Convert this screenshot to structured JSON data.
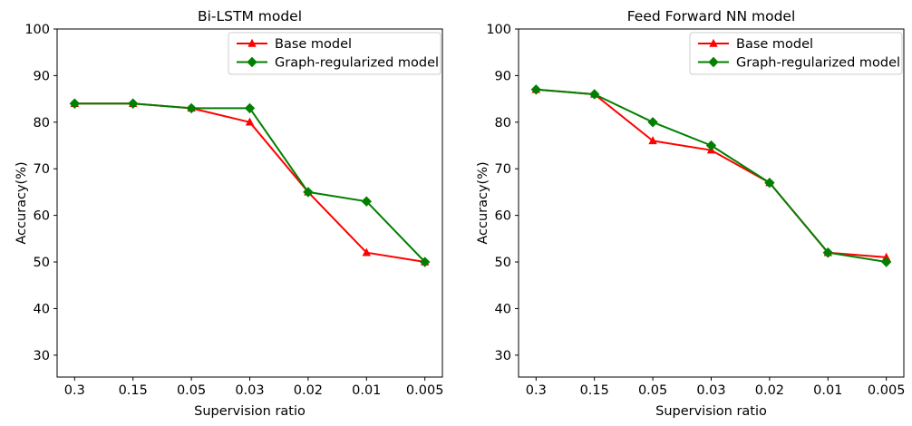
{
  "figure": {
    "background": "#ffffff",
    "frame_color": "#000000",
    "legend_border_color": "#cccccc"
  },
  "chart_data": [
    {
      "type": "line",
      "title": "Bi-LSTM model",
      "xlabel": "Supervision ratio",
      "ylabel": "Accuracy(%)",
      "categories": [
        "0.3",
        "0.15",
        "0.05",
        "0.03",
        "0.02",
        "0.01",
        "0.005"
      ],
      "yticks": [
        30,
        40,
        50,
        60,
        70,
        80,
        90,
        100
      ],
      "ylim": [
        25.3,
        100
      ],
      "grid": false,
      "legend_position": "upper right",
      "series": [
        {
          "name": "Base model",
          "color": "#ff0000",
          "marker": "triangle",
          "values": [
            84,
            84,
            83,
            80,
            65,
            52,
            50
          ]
        },
        {
          "name": "Graph-regularized model",
          "color": "#008000",
          "marker": "diamond",
          "values": [
            84,
            84,
            83,
            83,
            65,
            63,
            50
          ]
        }
      ]
    },
    {
      "type": "line",
      "title": "Feed Forward NN model",
      "xlabel": "Supervision ratio",
      "ylabel": "Accuracy(%)",
      "categories": [
        "0.3",
        "0.15",
        "0.05",
        "0.03",
        "0.02",
        "0.01",
        "0.005"
      ],
      "yticks": [
        30,
        40,
        50,
        60,
        70,
        80,
        90,
        100
      ],
      "ylim": [
        25.3,
        100
      ],
      "grid": false,
      "legend_position": "upper right",
      "series": [
        {
          "name": "Base model",
          "color": "#ff0000",
          "marker": "triangle",
          "values": [
            87,
            86,
            76,
            74,
            67,
            52,
            51
          ]
        },
        {
          "name": "Graph-regularized model",
          "color": "#008000",
          "marker": "diamond",
          "values": [
            87,
            86,
            80,
            75,
            67,
            52,
            50
          ]
        }
      ]
    }
  ]
}
